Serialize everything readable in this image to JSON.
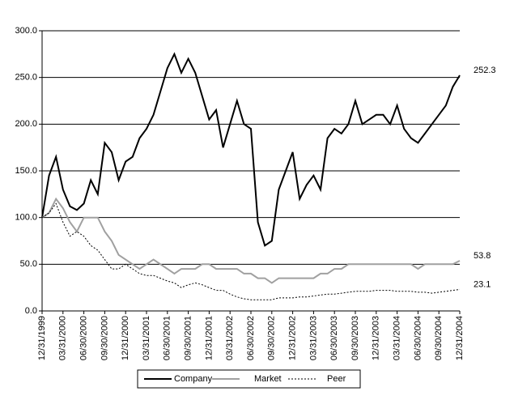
{
  "chart_data": {
    "type": "line",
    "categories": [
      "12/31/1999",
      null,
      null,
      "03/31/2000",
      null,
      null,
      "06/30/2000",
      null,
      null,
      "09/30/2000",
      null,
      null,
      "12/31/2000",
      null,
      null,
      "03/31/2001",
      null,
      null,
      "06/30/2001",
      null,
      null,
      "09/30/2001",
      null,
      null,
      "12/31/2001",
      null,
      null,
      "03/31/2002",
      null,
      null,
      "06/30/2002",
      null,
      null,
      "09/30/2002",
      null,
      null,
      "12/31/2002",
      null,
      null,
      "03/31/2003",
      null,
      null,
      "06/30/2003",
      null,
      null,
      "09/30/2003",
      null,
      null,
      "12/31/2003",
      null,
      null,
      "03/31/2004",
      null,
      null,
      "06/30/2004",
      null,
      null,
      "09/30/2004",
      null,
      null,
      "12/31/2004"
    ],
    "series": [
      {
        "name": "Company",
        "color": "#000000",
        "style": "solid",
        "values": [
          100,
          145,
          165,
          130,
          112,
          108,
          115,
          140,
          125,
          180,
          170,
          140,
          160,
          165,
          185,
          195,
          210,
          235,
          260,
          275,
          255,
          270,
          255,
          230,
          205,
          215,
          175,
          200,
          225,
          200,
          195,
          95,
          70,
          75,
          130,
          150,
          170,
          120,
          135,
          145,
          130,
          185,
          195,
          190,
          200,
          225,
          200,
          205,
          210,
          210,
          200,
          220,
          195,
          185,
          180,
          190,
          200,
          210,
          220,
          240,
          252.3
        ]
      },
      {
        "name": "Market",
        "color": "#a0a0a0",
        "style": "solid",
        "values": [
          100,
          105,
          120,
          110,
          95,
          85,
          100,
          100,
          100,
          85,
          75,
          60,
          55,
          50,
          45,
          50,
          55,
          50,
          45,
          40,
          45,
          45,
          45,
          50,
          50,
          45,
          45,
          45,
          45,
          40,
          40,
          35,
          35,
          30,
          35,
          35,
          35,
          35,
          35,
          35,
          40,
          40,
          45,
          45,
          50,
          50,
          50,
          50,
          50,
          50,
          50,
          50,
          50,
          50,
          45,
          50,
          50,
          50,
          50,
          50,
          53.8
        ]
      },
      {
        "name": "Peer",
        "color": "#000000",
        "style": "dotted",
        "values": [
          100,
          105,
          115,
          95,
          80,
          85,
          80,
          70,
          65,
          55,
          45,
          45,
          50,
          45,
          40,
          38,
          38,
          35,
          32,
          30,
          25,
          28,
          30,
          28,
          25,
          22,
          22,
          18,
          15,
          13,
          12,
          12,
          12,
          12,
          14,
          14,
          14,
          15,
          15,
          16,
          17,
          18,
          18,
          19,
          20,
          21,
          21,
          21,
          22,
          22,
          22,
          21,
          21,
          21,
          20,
          20,
          19,
          20,
          21,
          22,
          23.1
        ]
      }
    ],
    "ylim": [
      0,
      300
    ],
    "yticks": [
      {
        "value": 0,
        "label": "0.0"
      },
      {
        "value": 50,
        "label": "50.0"
      },
      {
        "value": 100,
        "label": "100.0"
      },
      {
        "value": 150,
        "label": "150.0"
      },
      {
        "value": 200,
        "label": "200.0"
      },
      {
        "value": 250,
        "label": "250.0"
      },
      {
        "value": 300,
        "label": "300.0"
      }
    ],
    "grid": true,
    "legend": "bottom"
  }
}
